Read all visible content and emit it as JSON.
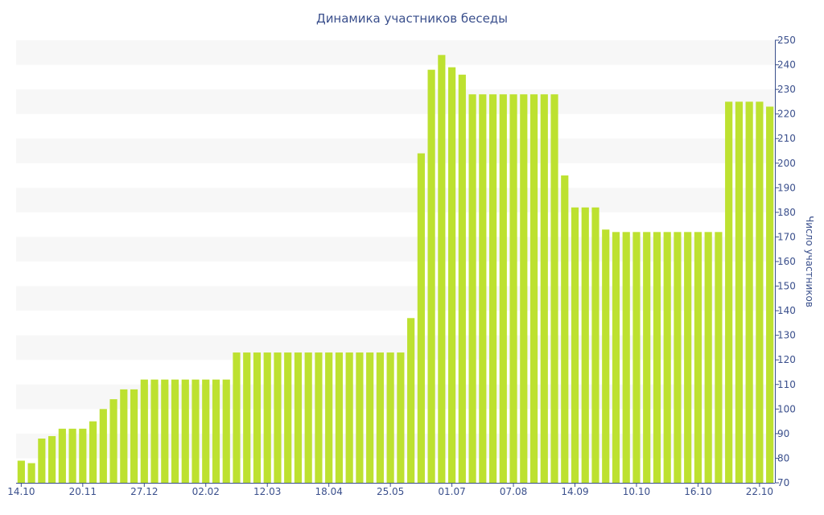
{
  "chart_data": {
    "type": "bar",
    "title": "Динамика участников беседы",
    "xlabel": "",
    "ylabel": "Число участников",
    "ylim": [
      70,
      250
    ],
    "ytick_step": 10,
    "grid": "alternating horizontal bands",
    "colors": {
      "bar": "#bde130",
      "band": "#f7f7f7",
      "text": "#3a4f8c",
      "axis": "#3a4f8c"
    },
    "x_tick_labels": [
      {
        "label": "14.10",
        "index": 0
      },
      {
        "label": "20.11",
        "index": 6
      },
      {
        "label": "27.12",
        "index": 12
      },
      {
        "label": "02.02",
        "index": 18
      },
      {
        "label": "12.03",
        "index": 24
      },
      {
        "label": "18.04",
        "index": 30
      },
      {
        "label": "25.05",
        "index": 36
      },
      {
        "label": "01.07",
        "index": 42
      },
      {
        "label": "07.08",
        "index": 48
      },
      {
        "label": "14.09",
        "index": 54
      },
      {
        "label": "10.10",
        "index": 60
      },
      {
        "label": "16.10",
        "index": 66
      },
      {
        "label": "22.10",
        "index": 72
      }
    ],
    "values": [
      79,
      78,
      88,
      89,
      92,
      92,
      92,
      95,
      100,
      104,
      108,
      108,
      112,
      112,
      112,
      112,
      112,
      112,
      112,
      112,
      112,
      123,
      123,
      123,
      123,
      123,
      123,
      123,
      123,
      123,
      123,
      123,
      123,
      123,
      123,
      123,
      123,
      123,
      137,
      204,
      238,
      244,
      239,
      236,
      228,
      228,
      228,
      228,
      228,
      228,
      228,
      228,
      228,
      195,
      182,
      182,
      182,
      173,
      172,
      172,
      172,
      172,
      172,
      172,
      172,
      172,
      172,
      172,
      172,
      225,
      225,
      225,
      225,
      223
    ]
  }
}
